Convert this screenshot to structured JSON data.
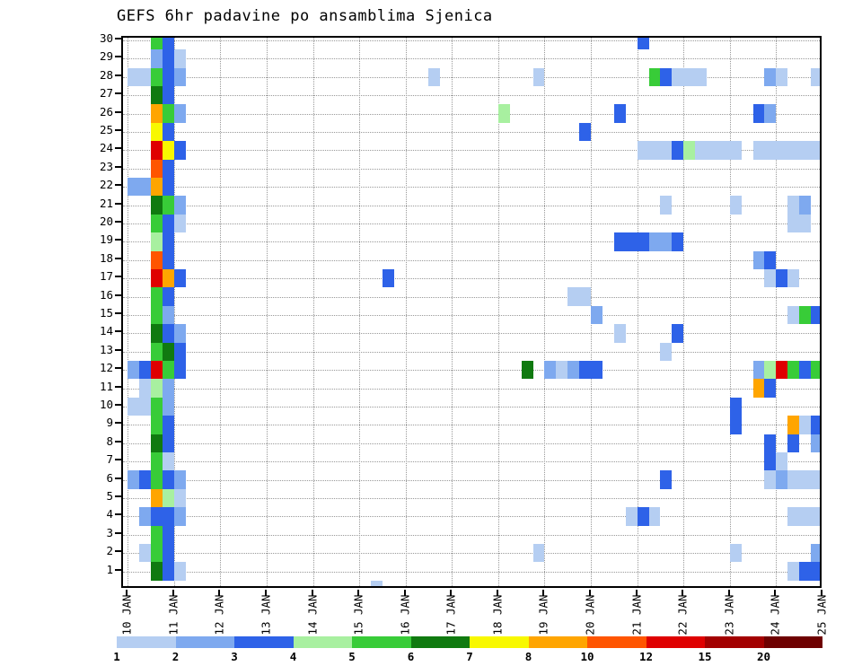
{
  "title": "GEFS 6hr padavine po ansamblima Sjenica",
  "chart_data": {
    "type": "heatmap",
    "title": "GEFS 6hr padavine po ansamblima Sjenica",
    "x_ticks": [
      "10 JAN",
      "11 JAN",
      "12 JAN",
      "13 JAN",
      "14 JAN",
      "15 JAN",
      "16 JAN",
      "17 JAN",
      "18 JAN",
      "19 JAN",
      "20 JAN",
      "21 JAN",
      "22 JAN",
      "23 JAN",
      "24 JAN",
      "25 JAN"
    ],
    "y_ticks": [
      "1",
      "2",
      "3",
      "4",
      "5",
      "6",
      "7",
      "8",
      "9",
      "10",
      "11",
      "12",
      "13",
      "14",
      "15",
      "16",
      "17",
      "18",
      "19",
      "20",
      "21",
      "22",
      "23",
      "24",
      "25",
      "26",
      "27",
      "28",
      "29",
      "30"
    ],
    "legend_values": [
      1,
      2,
      3,
      4,
      5,
      6,
      7,
      8,
      10,
      12,
      15,
      20
    ],
    "palette": {
      "1": "#b5cef2",
      "2": "#7ea9ef",
      "3": "#2e62e8",
      "4": "#a8f0a0",
      "5": "#38cc38",
      "6": "#107a10",
      "7": "#f8f800",
      "8": "#ffa500",
      "10": "#ff5500",
      "12": "#df0000",
      "15": "#a30000",
      "20": "#6e0000"
    },
    "grid": "dotted",
    "x_range_days": [
      10,
      25
    ],
    "time_step_days": 0.25,
    "cells_format": "[ensemble_member_row, day_of_january, value_lower_bound]",
    "cells": [
      [
        30,
        10.5,
        5
      ],
      [
        30,
        10.75,
        3
      ],
      [
        29,
        10.5,
        2
      ],
      [
        29,
        10.75,
        3
      ],
      [
        29,
        11.0,
        1
      ],
      [
        28,
        10.0,
        1
      ],
      [
        28,
        10.25,
        1
      ],
      [
        28,
        10.5,
        5
      ],
      [
        28,
        10.75,
        3
      ],
      [
        28,
        11.0,
        2
      ],
      [
        27,
        10.5,
        6
      ],
      [
        27,
        10.75,
        3
      ],
      [
        26,
        10.5,
        8
      ],
      [
        26,
        10.75,
        5
      ],
      [
        26,
        11.0,
        2
      ],
      [
        25,
        10.5,
        7
      ],
      [
        25,
        10.75,
        3
      ],
      [
        24,
        10.5,
        12
      ],
      [
        24,
        10.75,
        7
      ],
      [
        24,
        11.0,
        3
      ],
      [
        23,
        10.5,
        10
      ],
      [
        23,
        10.75,
        3
      ],
      [
        22,
        10.0,
        2
      ],
      [
        22,
        10.25,
        2
      ],
      [
        22,
        10.5,
        8
      ],
      [
        22,
        10.75,
        3
      ],
      [
        21,
        10.5,
        6
      ],
      [
        21,
        10.75,
        5
      ],
      [
        21,
        11.0,
        2
      ],
      [
        20,
        10.5,
        5
      ],
      [
        20,
        10.75,
        3
      ],
      [
        20,
        11.0,
        1
      ],
      [
        19,
        10.5,
        4
      ],
      [
        19,
        10.75,
        3
      ],
      [
        18,
        10.5,
        10
      ],
      [
        18,
        10.75,
        3
      ],
      [
        17,
        10.5,
        12
      ],
      [
        17,
        10.75,
        8
      ],
      [
        17,
        11.0,
        3
      ],
      [
        16,
        10.5,
        5
      ],
      [
        16,
        10.75,
        3
      ],
      [
        15,
        10.5,
        5
      ],
      [
        15,
        10.75,
        2
      ],
      [
        14,
        10.5,
        6
      ],
      [
        14,
        10.75,
        3
      ],
      [
        14,
        11.0,
        2
      ],
      [
        13,
        10.5,
        5
      ],
      [
        13,
        10.75,
        6
      ],
      [
        13,
        11.0,
        3
      ],
      [
        12,
        10.0,
        2
      ],
      [
        12,
        10.25,
        3
      ],
      [
        12,
        10.5,
        12
      ],
      [
        12,
        10.75,
        5
      ],
      [
        12,
        11.0,
        3
      ],
      [
        11,
        10.25,
        1
      ],
      [
        11,
        10.5,
        4
      ],
      [
        11,
        10.75,
        2
      ],
      [
        10,
        10.0,
        1
      ],
      [
        10,
        10.25,
        1
      ],
      [
        10,
        10.5,
        5
      ],
      [
        10,
        10.75,
        2
      ],
      [
        9,
        10.5,
        5
      ],
      [
        9,
        10.75,
        3
      ],
      [
        8,
        10.5,
        6
      ],
      [
        8,
        10.75,
        3
      ],
      [
        7,
        10.5,
        5
      ],
      [
        7,
        10.75,
        1
      ],
      [
        6,
        10.0,
        2
      ],
      [
        6,
        10.25,
        3
      ],
      [
        6,
        10.5,
        5
      ],
      [
        6,
        10.75,
        3
      ],
      [
        6,
        11.0,
        2
      ],
      [
        5,
        10.5,
        8
      ],
      [
        5,
        10.75,
        4
      ],
      [
        5,
        11.0,
        1
      ],
      [
        4,
        10.25,
        2
      ],
      [
        4,
        10.5,
        3
      ],
      [
        4,
        10.75,
        3
      ],
      [
        4,
        11.0,
        2
      ],
      [
        3,
        10.5,
        5
      ],
      [
        3,
        10.75,
        3
      ],
      [
        2,
        10.25,
        1
      ],
      [
        2,
        10.5,
        5
      ],
      [
        2,
        10.75,
        3
      ],
      [
        1,
        10.5,
        6
      ],
      [
        1,
        10.75,
        3
      ],
      [
        1,
        11.0,
        1
      ],
      [
        30,
        21.0,
        3
      ],
      [
        28,
        16.5,
        1
      ],
      [
        28,
        18.75,
        1
      ],
      [
        28,
        21.25,
        5
      ],
      [
        28,
        21.5,
        3
      ],
      [
        28,
        21.75,
        1
      ],
      [
        28,
        22.0,
        1
      ],
      [
        28,
        22.25,
        1
      ],
      [
        28,
        23.75,
        2
      ],
      [
        28,
        24.0,
        1
      ],
      [
        28,
        24.75,
        1
      ],
      [
        26,
        18.0,
        4
      ],
      [
        26,
        20.5,
        3
      ],
      [
        26,
        23.5,
        3
      ],
      [
        26,
        23.75,
        2
      ],
      [
        25,
        19.75,
        3
      ],
      [
        24,
        21.0,
        1
      ],
      [
        24,
        21.25,
        1
      ],
      [
        24,
        21.5,
        1
      ],
      [
        24,
        21.75,
        3
      ],
      [
        24,
        22.0,
        4
      ],
      [
        24,
        22.25,
        1
      ],
      [
        24,
        22.5,
        1
      ],
      [
        24,
        22.75,
        1
      ],
      [
        24,
        23.0,
        1
      ],
      [
        24,
        23.5,
        1
      ],
      [
        24,
        23.75,
        1
      ],
      [
        24,
        24.0,
        1
      ],
      [
        24,
        24.25,
        1
      ],
      [
        24,
        24.5,
        1
      ],
      [
        24,
        24.75,
        1
      ],
      [
        21,
        21.5,
        1
      ],
      [
        21,
        23.0,
        1
      ],
      [
        21,
        24.25,
        1
      ],
      [
        21,
        24.5,
        2
      ],
      [
        20,
        24.25,
        1
      ],
      [
        20,
        24.5,
        1
      ],
      [
        19,
        20.5,
        3
      ],
      [
        19,
        20.75,
        3
      ],
      [
        19,
        21.0,
        3
      ],
      [
        19,
        21.25,
        2
      ],
      [
        19,
        21.5,
        2
      ],
      [
        19,
        21.75,
        3
      ],
      [
        18,
        23.5,
        2
      ],
      [
        18,
        23.75,
        3
      ],
      [
        17,
        15.5,
        3
      ],
      [
        17,
        23.75,
        1
      ],
      [
        17,
        24.0,
        3
      ],
      [
        17,
        24.25,
        1
      ],
      [
        16,
        19.5,
        1
      ],
      [
        16,
        19.75,
        1
      ],
      [
        15,
        20.0,
        2
      ],
      [
        15,
        24.25,
        1
      ],
      [
        15,
        24.5,
        5
      ],
      [
        15,
        24.75,
        3
      ],
      [
        14,
        20.5,
        1
      ],
      [
        14,
        21.75,
        3
      ],
      [
        13,
        21.5,
        1
      ],
      [
        12,
        18.5,
        6
      ],
      [
        12,
        19.0,
        2
      ],
      [
        12,
        19.25,
        1
      ],
      [
        12,
        19.5,
        2
      ],
      [
        12,
        19.75,
        3
      ],
      [
        12,
        20.0,
        3
      ],
      [
        12,
        23.5,
        2
      ],
      [
        12,
        23.75,
        4
      ],
      [
        12,
        24.0,
        12
      ],
      [
        12,
        24.25,
        5
      ],
      [
        12,
        24.5,
        3
      ],
      [
        12,
        24.75,
        5
      ],
      [
        11,
        23.5,
        8
      ],
      [
        11,
        23.75,
        3
      ],
      [
        10,
        23.0,
        3
      ],
      [
        9,
        23.0,
        3
      ],
      [
        9,
        24.25,
        8
      ],
      [
        9,
        24.5,
        1
      ],
      [
        9,
        24.75,
        3
      ],
      [
        8,
        23.75,
        3
      ],
      [
        8,
        24.25,
        3
      ],
      [
        8,
        24.75,
        2
      ],
      [
        7,
        23.75,
        3
      ],
      [
        7,
        24.0,
        1
      ],
      [
        6,
        21.5,
        3
      ],
      [
        6,
        23.75,
        1
      ],
      [
        6,
        24.0,
        2
      ],
      [
        6,
        24.25,
        1
      ],
      [
        6,
        24.5,
        1
      ],
      [
        6,
        24.75,
        1
      ],
      [
        4,
        20.75,
        1
      ],
      [
        4,
        21.0,
        3
      ],
      [
        4,
        21.25,
        1
      ],
      [
        4,
        24.25,
        1
      ],
      [
        4,
        24.5,
        1
      ],
      [
        4,
        24.75,
        1
      ],
      [
        2,
        18.75,
        1
      ],
      [
        2,
        23.0,
        1
      ],
      [
        2,
        24.75,
        2
      ],
      [
        1,
        24.25,
        1
      ],
      [
        1,
        24.5,
        3
      ],
      [
        1,
        24.75,
        3
      ],
      [
        0,
        15.25,
        1
      ]
    ]
  }
}
